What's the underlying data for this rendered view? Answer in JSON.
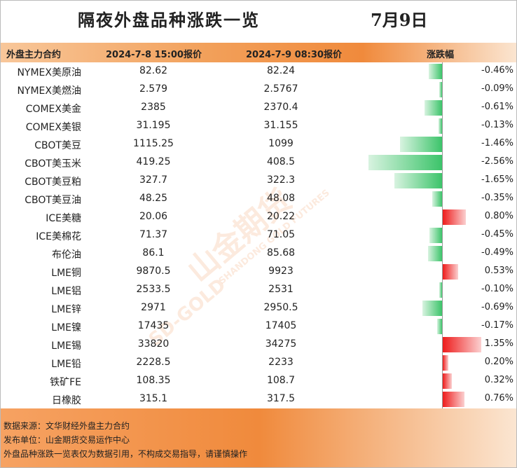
{
  "header": {
    "title": "隔夜外盘品种涨跌一览",
    "date": "7月9日"
  },
  "table": {
    "columns": [
      "外盘主力合约",
      "2024-7-8 15:00报价",
      "2024-7-9 08:30报价",
      "涨跌幅"
    ],
    "rows": [
      [
        "NYMEX美原油",
        "82.62",
        "82.24"
      ],
      [
        "NYMEX美燃油",
        "2.579",
        "2.5767"
      ],
      [
        "COMEX美金",
        "2385",
        "2370.4"
      ],
      [
        "COMEX美银",
        "31.195",
        "31.155"
      ],
      [
        "CBOT美豆",
        "1115.25",
        "1099"
      ],
      [
        "CBOT美玉米",
        "419.25",
        "408.5"
      ],
      [
        "CBOT美豆粕",
        "327.7",
        "322.3"
      ],
      [
        "CBOT美豆油",
        "48.25",
        "48.08"
      ],
      [
        "ICE美糖",
        "20.06",
        "20.22"
      ],
      [
        "ICE美棉花",
        "71.37",
        "71.05"
      ],
      [
        "布伦油",
        "86.1",
        "85.68"
      ],
      [
        "LME铜",
        "9870.5",
        "9923"
      ],
      [
        "LME铝",
        "2533.5",
        "2531"
      ],
      [
        "LME锌",
        "2971",
        "2950.5"
      ],
      [
        "LME镍",
        "17435",
        "17405"
      ],
      [
        "LME锡",
        "33820",
        "34275"
      ],
      [
        "LME铅",
        "2228.5",
        "2233"
      ],
      [
        "铁矿FE",
        "108.35",
        "108.7"
      ],
      [
        "日橡胶",
        "315.1",
        "317.5"
      ]
    ],
    "change": {
      "values": [
        -0.46,
        -0.09,
        -0.61,
        -0.13,
        -1.46,
        -2.56,
        -1.65,
        -0.35,
        0.8,
        -0.45,
        -0.49,
        0.53,
        -0.1,
        -0.69,
        -0.17,
        1.35,
        0.2,
        0.32,
        0.76
      ],
      "value_labels": [
        "-0.46%",
        "-0.09%",
        "-0.61%",
        "-0.13%",
        "-1.46%",
        "-2.56%",
        "-1.65%",
        "-0.35%",
        "0.80%",
        "-0.45%",
        "-0.49%",
        "0.53%",
        "-0.10%",
        "-0.69%",
        "-0.17%",
        "1.35%",
        "0.20%",
        "0.32%",
        "0.76%"
      ]
    }
  },
  "watermark": [
    "山金期货",
    "SHANDONG GOLD FUTURES",
    "SD-GOLD"
  ],
  "footer": [
    "数据来源：文华财经外盘主力合约",
    "发布单位：山金期货交易运作中心",
    "外盘品种涨跌一览表仅为数据引用，不构成交易指导，请谨慎操作"
  ]
}
